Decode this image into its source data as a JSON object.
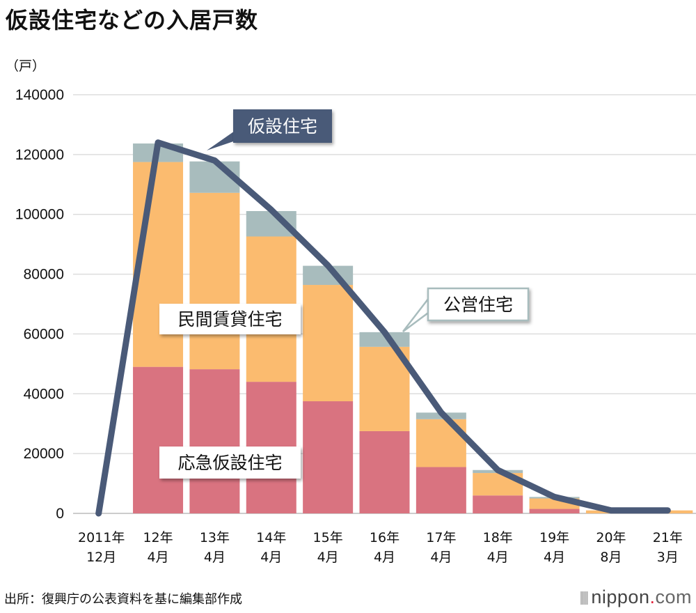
{
  "title": "仮設住宅などの入居戸数",
  "unit_label": "（戸）",
  "source": "出所：復興庁の公表資料を基に編集部作成",
  "logo": {
    "main": "nippon",
    "dot": ".",
    "suffix": "com",
    "icon": "vertical-bars-icon"
  },
  "colors": {
    "emergency": "#d97380",
    "private": "#fbbb6f",
    "public": "#a8bcbd",
    "line": "#4a5a78",
    "grid": "#dddddd"
  },
  "chart_data": {
    "type": "bar",
    "stacked": true,
    "categories": [
      [
        "2011年",
        "12月"
      ],
      [
        "12年",
        "4月"
      ],
      [
        "13年",
        "4月"
      ],
      [
        "14年",
        "4月"
      ],
      [
        "15年",
        "4月"
      ],
      [
        "16年",
        "4月"
      ],
      [
        "17年",
        "4月"
      ],
      [
        "18年",
        "4月"
      ],
      [
        "19年",
        "4月"
      ],
      [
        "20年",
        "8月"
      ],
      [
        "21年",
        "3月"
      ]
    ],
    "series": [
      {
        "name": "応急仮設住宅",
        "values": [
          0,
          49000,
          48200,
          44000,
          37500,
          27500,
          15500,
          6000,
          1500,
          0,
          0
        ]
      },
      {
        "name": "民間賃貸住宅",
        "values": [
          0,
          68500,
          59000,
          48600,
          38900,
          28200,
          16000,
          7500,
          3500,
          1000,
          1000
        ]
      },
      {
        "name": "公営住宅",
        "values": [
          0,
          6200,
          10500,
          8500,
          6400,
          4900,
          2200,
          1000,
          500,
          0,
          0
        ]
      }
    ],
    "line": {
      "name": "仮設住宅",
      "values": [
        0,
        124000,
        118000,
        101500,
        82900,
        60600,
        33700,
        14500,
        5500,
        1000,
        1000
      ]
    },
    "yticks": [
      "0",
      "20000",
      "40000",
      "60000",
      "80000",
      "100000",
      "120000",
      "140000"
    ],
    "ylim": [
      0,
      140000
    ],
    "grid": true
  }
}
